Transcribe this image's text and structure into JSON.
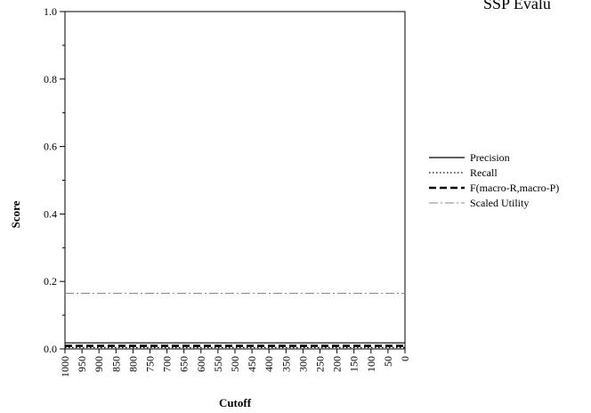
{
  "chart_data": {
    "type": "line",
    "title": "SSP Evalu",
    "xlabel": "Cutoff",
    "ylabel": "Score",
    "x": [
      1000,
      950,
      900,
      850,
      800,
      750,
      700,
      650,
      600,
      550,
      500,
      450,
      400,
      350,
      300,
      250,
      200,
      150,
      100,
      50,
      0
    ],
    "x_tick_labels": [
      "1000",
      "950",
      "900",
      "850",
      "800",
      "750",
      "700",
      "650",
      "600",
      "550",
      "500",
      "450",
      "400",
      "350",
      "300",
      "250",
      "200",
      "150",
      "100",
      "50",
      "0"
    ],
    "y_tick_labels": [
      "0.0",
      "0.2",
      "0.4",
      "0.6",
      "0.8",
      "1.0"
    ],
    "xlim": [
      1000,
      0
    ],
    "ylim": [
      0,
      1.0
    ],
    "legend_position": "right",
    "grid": false,
    "series": [
      {
        "name": "Precision",
        "style": "solid",
        "color": "#000000",
        "values": [
          0.018,
          0.018,
          0.018,
          0.018,
          0.018,
          0.018,
          0.018,
          0.018,
          0.018,
          0.018,
          0.018,
          0.018,
          0.018,
          0.018,
          0.018,
          0.018,
          0.018,
          0.018,
          0.018,
          0.018,
          0.018
        ]
      },
      {
        "name": "Recall",
        "style": "dotted",
        "color": "#000000",
        "values": [
          0.004,
          0.004,
          0.004,
          0.004,
          0.004,
          0.004,
          0.004,
          0.004,
          0.004,
          0.004,
          0.004,
          0.004,
          0.004,
          0.004,
          0.004,
          0.004,
          0.004,
          0.004,
          0.004,
          0.004,
          0.004
        ]
      },
      {
        "name": "F(macro-R,macro-P)",
        "style": "dashed-bold",
        "color": "#000000",
        "values": [
          0.009,
          0.009,
          0.009,
          0.009,
          0.009,
          0.009,
          0.009,
          0.009,
          0.009,
          0.009,
          0.009,
          0.009,
          0.009,
          0.009,
          0.009,
          0.009,
          0.009,
          0.009,
          0.009,
          0.009,
          0.009
        ]
      },
      {
        "name": "Scaled Utility",
        "style": "dashdot",
        "color": "#888888",
        "values": [
          0.165,
          0.165,
          0.165,
          0.165,
          0.165,
          0.165,
          0.165,
          0.165,
          0.165,
          0.165,
          0.165,
          0.165,
          0.165,
          0.165,
          0.165,
          0.165,
          0.165,
          0.165,
          0.165,
          0.165,
          0.165
        ]
      }
    ]
  }
}
